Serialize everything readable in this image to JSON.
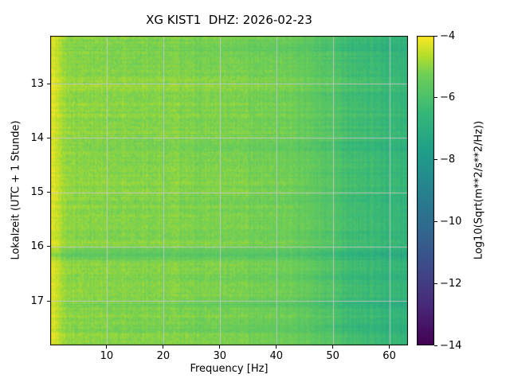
{
  "figure": {
    "background": "#ffffff"
  },
  "chart_data": {
    "type": "heatmap",
    "variant": "spectrogram",
    "title": "XG KIST1  DHZ: 2026-02-23",
    "xlabel": "Frequency [Hz]",
    "ylabel": "Lokalzeit (UTC + 1 Stunde)",
    "xlim": [
      0,
      63.3
    ],
    "ylim": [
      12.12,
      17.82
    ],
    "y_direction": "down",
    "xticks": [
      10,
      20,
      30,
      40,
      50,
      60
    ],
    "xtick_labels": [
      "10",
      "20",
      "30",
      "40",
      "50",
      "60"
    ],
    "yticks": [
      13,
      14,
      15,
      16,
      17
    ],
    "ytick_labels": [
      "13",
      "14",
      "15",
      "16",
      "17"
    ],
    "grid": true,
    "grid_color": "#c8c8c8",
    "colorbar": {
      "label": "Log10(Sqrt(m**2/s**2/Hz))",
      "min": -14,
      "max": -4,
      "ticks": [
        -4,
        -6,
        -8,
        -10,
        -12,
        -14
      ],
      "tick_labels": [
        "−4",
        "−6",
        "−8",
        "−10",
        "−12",
        "−14"
      ],
      "colormap": "viridis"
    },
    "colormap_stops": [
      [
        0.0,
        [
          68,
          1,
          84
        ]
      ],
      [
        0.125,
        [
          72,
          40,
          120
        ]
      ],
      [
        0.25,
        [
          62,
          74,
          137
        ]
      ],
      [
        0.375,
        [
          49,
          104,
          142
        ]
      ],
      [
        0.5,
        [
          38,
          130,
          142
        ]
      ],
      [
        0.625,
        [
          31,
          158,
          137
        ]
      ],
      [
        0.75,
        [
          53,
          183,
          121
        ]
      ],
      [
        0.875,
        [
          110,
          206,
          88
        ]
      ],
      [
        0.9375,
        [
          181,
          222,
          43
        ]
      ],
      [
        1.0,
        [
          253,
          231,
          37
        ]
      ]
    ],
    "spectral_model": {
      "seed": 42,
      "base_curve": [
        [
          0,
          -4.25
        ],
        [
          1,
          -4.35
        ],
        [
          2,
          -4.7
        ],
        [
          3,
          -4.95
        ],
        [
          8,
          -5.0
        ],
        [
          15,
          -5.05
        ],
        [
          25,
          -5.1
        ],
        [
          35,
          -5.15
        ],
        [
          42,
          -5.3
        ],
        [
          46,
          -5.5
        ],
        [
          50,
          -5.85
        ],
        [
          54,
          -6.15
        ],
        [
          58,
          -6.4
        ],
        [
          61,
          -6.55
        ],
        [
          63.3,
          -6.6
        ]
      ],
      "bands": [
        {
          "center": 12.35,
          "width": 0.12,
          "delta": -0.35,
          "hf": true
        },
        {
          "center": 13.05,
          "width": 0.05,
          "delta": 0.22,
          "hf": false
        },
        {
          "center": 14.18,
          "width": 0.1,
          "delta": -0.3,
          "hf": true
        },
        {
          "center": 15.12,
          "width": 0.06,
          "delta": -0.2,
          "hf": true
        },
        {
          "center": 16.15,
          "width": 0.1,
          "delta": -0.55,
          "hf": false
        },
        {
          "center": 16.55,
          "width": 0.08,
          "delta": -0.25,
          "hf": true
        },
        {
          "center": 17.05,
          "width": 0.1,
          "delta": -0.45,
          "hf": true
        },
        {
          "center": 17.5,
          "width": 0.15,
          "delta": -0.3,
          "hf": true
        }
      ],
      "noise": {
        "cell": 0.2,
        "row": 0.13,
        "col": 0.11
      },
      "edge_jitter": 2.5
    }
  }
}
